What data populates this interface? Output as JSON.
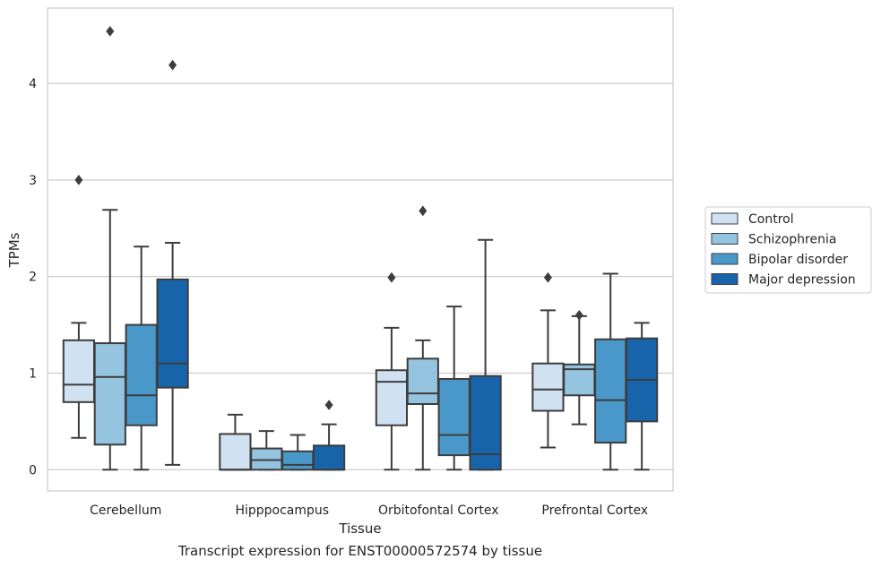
{
  "chart_data": {
    "type": "box",
    "caption": "Transcript expression for ENST00000572574 by tissue",
    "xlabel": "Tissue",
    "ylabel": "TPMs",
    "ylim": [
      -0.22,
      4.78
    ],
    "yticks": [
      0,
      1,
      2,
      3,
      4
    ],
    "grid": "horizontal",
    "legend_position": "right",
    "categories": [
      "Cerebellum",
      "Hipppocampus",
      "Orbitofontal Cortex",
      "Prefrontal Cortex"
    ],
    "series": [
      {
        "name": "Control",
        "color": "#d0e1f2",
        "boxes": [
          {
            "whislo": 0.33,
            "q1": 0.7,
            "med": 0.88,
            "q3": 1.34,
            "whishi": 1.52,
            "fliers": [
              3.0
            ]
          },
          {
            "whislo": 0.0,
            "q1": 0.0,
            "med": 0.0,
            "q3": 0.37,
            "whishi": 0.57,
            "fliers": []
          },
          {
            "whislo": 0.0,
            "q1": 0.46,
            "med": 0.91,
            "q3": 1.03,
            "whishi": 1.47,
            "fliers": [
              1.99
            ]
          },
          {
            "whislo": 0.23,
            "q1": 0.61,
            "med": 0.83,
            "q3": 1.1,
            "whishi": 1.65,
            "fliers": [
              1.99
            ]
          }
        ]
      },
      {
        "name": "Schizophrenia",
        "color": "#94c4df",
        "boxes": [
          {
            "whislo": 0.0,
            "q1": 0.26,
            "med": 0.96,
            "q3": 1.31,
            "whishi": 2.69,
            "fliers": [
              4.54
            ]
          },
          {
            "whislo": 0.0,
            "q1": 0.0,
            "med": 0.1,
            "q3": 0.22,
            "whishi": 0.4,
            "fliers": []
          },
          {
            "whislo": 0.0,
            "q1": 0.68,
            "med": 0.79,
            "q3": 1.15,
            "whishi": 1.34,
            "fliers": [
              2.68
            ]
          },
          {
            "whislo": 0.47,
            "q1": 0.77,
            "med": 1.04,
            "q3": 1.09,
            "whishi": 1.59,
            "fliers": [
              1.6
            ]
          }
        ]
      },
      {
        "name": "Bipolar disorder",
        "color": "#4a98c9",
        "boxes": [
          {
            "whislo": 0.0,
            "q1": 0.46,
            "med": 0.77,
            "q3": 1.5,
            "whishi": 2.31,
            "fliers": []
          },
          {
            "whislo": 0.0,
            "q1": 0.0,
            "med": 0.05,
            "q3": 0.19,
            "whishi": 0.36,
            "fliers": []
          },
          {
            "whislo": 0.0,
            "q1": 0.15,
            "med": 0.36,
            "q3": 0.94,
            "whishi": 1.69,
            "fliers": []
          },
          {
            "whislo": 0.0,
            "q1": 0.28,
            "med": 0.72,
            "q3": 1.35,
            "whishi": 2.03,
            "fliers": []
          }
        ]
      },
      {
        "name": "Major depression",
        "color": "#1764ab",
        "boxes": [
          {
            "whislo": 0.05,
            "q1": 0.85,
            "med": 1.1,
            "q3": 1.97,
            "whishi": 2.35,
            "fliers": [
              4.19
            ]
          },
          {
            "whislo": 0.0,
            "q1": 0.0,
            "med": 0.0,
            "q3": 0.25,
            "whishi": 0.47,
            "fliers": [
              0.67
            ]
          },
          {
            "whislo": 0.0,
            "q1": 0.0,
            "med": 0.16,
            "q3": 0.97,
            "whishi": 2.38,
            "fliers": []
          },
          {
            "whislo": 0.0,
            "q1": 0.5,
            "med": 0.93,
            "q3": 1.36,
            "whishi": 1.52,
            "fliers": []
          }
        ]
      }
    ]
  }
}
